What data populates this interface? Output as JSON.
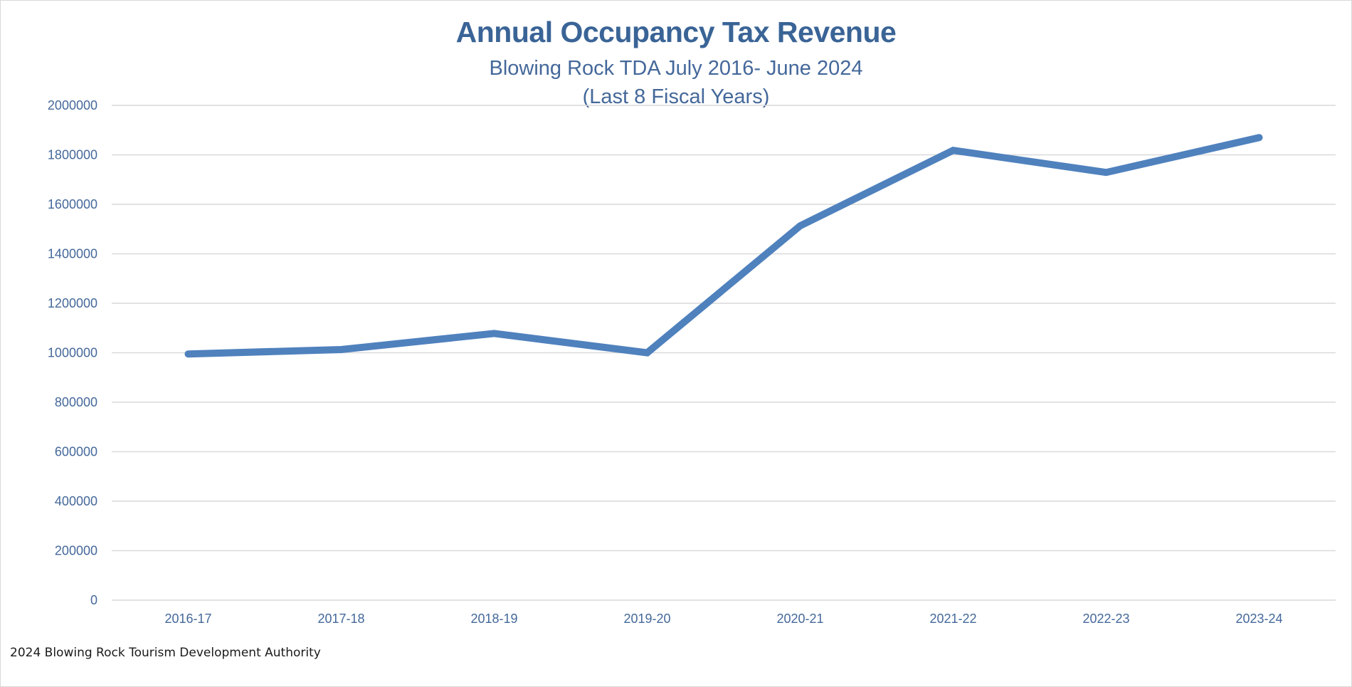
{
  "chart_data": {
    "type": "line",
    "title": "Annual Occupancy Tax Revenue",
    "subtitle": "Blowing Rock TDA July 2016- June 2024",
    "subtitle2": "(Last 8 Fiscal Years)",
    "xlabel": "",
    "ylabel": "",
    "categories": [
      "2016-17",
      "2017-18",
      "2018-19",
      "2019-20",
      "2020-21",
      "2021-22",
      "2022-23",
      "2023-24"
    ],
    "series": [
      {
        "name": "Occupancy Tax Revenue",
        "color": "#4F81BD",
        "values": [
          995000,
          1013000,
          1078000,
          1000000,
          1513000,
          1818000,
          1729000,
          1870000
        ]
      }
    ],
    "ylim": [
      0,
      2000000
    ],
    "yticks": [
      0,
      200000,
      400000,
      600000,
      800000,
      1000000,
      1200000,
      1400000,
      1600000,
      1800000,
      2000000
    ],
    "ytick_labels": [
      "0",
      "200000",
      "400000",
      "600000",
      "800000",
      "1000000",
      "1200000",
      "1400000",
      "1600000",
      "1800000",
      "2000000"
    ],
    "grid": true,
    "legend": "none"
  },
  "footer": "2024 Blowing Rock Tourism Development Authority",
  "colors": {
    "title": "#3A6496",
    "axis_text": "#44689A",
    "gridline": "#D9D9D9",
    "line": "#4F81BD"
  }
}
